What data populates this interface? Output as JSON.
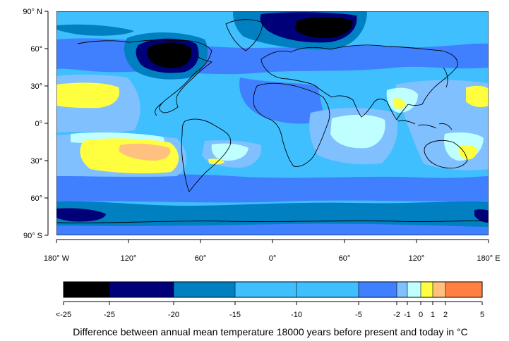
{
  "chart_data": {
    "type": "heatmap",
    "map_projection": "equirectangular",
    "xlim": [
      -180,
      180
    ],
    "ylim": [
      -90,
      90
    ],
    "x_ticks": [
      {
        "value": -180,
        "label": "180° W"
      },
      {
        "value": -120,
        "label": "120°"
      },
      {
        "value": -60,
        "label": "60°"
      },
      {
        "value": 0,
        "label": "0°"
      },
      {
        "value": 60,
        "label": "60°"
      },
      {
        "value": 120,
        "label": "120°"
      },
      {
        "value": 180,
        "label": "180° E"
      }
    ],
    "y_ticks": [
      {
        "value": 90,
        "label": "90° N"
      },
      {
        "value": 60,
        "label": "60°"
      },
      {
        "value": 30,
        "label": "30°"
      },
      {
        "value": 0,
        "label": "0°"
      },
      {
        "value": -30,
        "label": "30°"
      },
      {
        "value": -60,
        "label": "60°"
      },
      {
        "value": -90,
        "label": "90° S"
      }
    ],
    "colorbar": {
      "label": "Difference between annual mean temperature 18000 years before present and today in °C",
      "tick_labels": [
        "<-25",
        "-25",
        "-20",
        "-15",
        "-10",
        "-5",
        "-2",
        "-1",
        "0",
        "1",
        "2",
        "5"
      ],
      "bins": [
        {
          "from": "<-25",
          "to": "-25",
          "color": "#000000"
        },
        {
          "from": "-25",
          "to": "-20",
          "color": "#000078"
        },
        {
          "from": "-20",
          "to": "-15",
          "color": "#0080c0"
        },
        {
          "from": "-15",
          "to": "-10",
          "color": "#40bfff"
        },
        {
          "from": "-10",
          "to": "-5",
          "color": "#40bfff"
        },
        {
          "from": "-5",
          "to": "-2",
          "color": "#4080ff"
        },
        {
          "from": "-2",
          "to": "-1",
          "color": "#80c0ff"
        },
        {
          "from": "-1",
          "to": "0",
          "color": "#c0ffff"
        },
        {
          "from": "0",
          "to": "1",
          "color": "#ffff40"
        },
        {
          "from": "1",
          "to": "2",
          "color": "#ffc080"
        },
        {
          "from": "2",
          "to": "5",
          "color": "#ff8040"
        }
      ]
    }
  }
}
